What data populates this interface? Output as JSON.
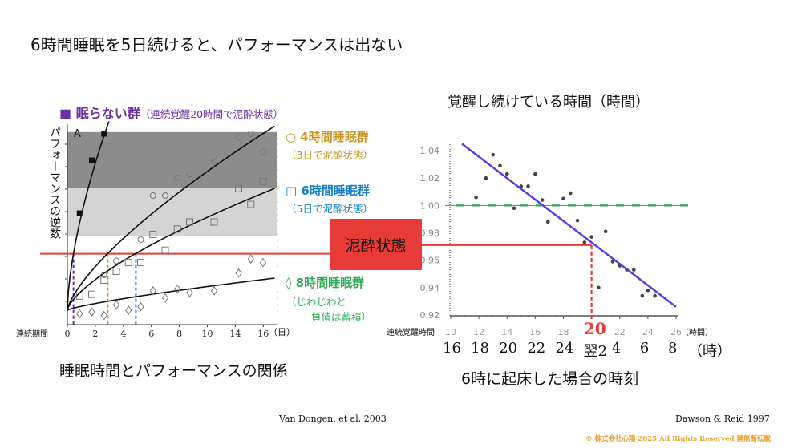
{
  "slide_title": "6時間睡眠を5日続けると、パフォーマンスは出ない",
  "drunk_label": "泥酔状態",
  "colors": {
    "purple": "#6a2fa0",
    "gold": "#c8961e",
    "blue": "#1a7fc8",
    "green": "#2eaa55",
    "red": "#e83a36",
    "line_blue": "#5540e0"
  },
  "left_chart": {
    "legend_nosleep": "■ 眠らない群",
    "legend_nosleep_note": "（連続覚醒20時間で泥酔状態）",
    "legend_4h": "○ 4時間睡眠群",
    "legend_4h_note": "（3日で泥酔状態）",
    "legend_6h": "□ 6時間睡眠群",
    "legend_6h_note": "（5日で泥酔状態）",
    "legend_8h": "◊ 8時間睡眠群",
    "legend_8h_note1": "（じわじわと",
    "legend_8h_note2": "負債は蓄積）",
    "panel_label": "A",
    "ylabel": "パフォーマンスの逆数",
    "xlabel_left": "連続期間",
    "x_unit": "（日）",
    "caption": "睡眠時間とパフォーマンスの関係",
    "source": "Van Dongen, et al. 2003"
  },
  "right_chart": {
    "title": "覚醒し続けている時間（時間）",
    "xlabel_left": "連続覚醒時間",
    "x_unit": "（時間）",
    "highlight_tick": "20",
    "clock_ticks": [
      "16",
      "18",
      "20",
      "22",
      "24",
      "翌2",
      "4",
      "6",
      "8"
    ],
    "clock_unit": "（時）",
    "caption": "6時に起床した場合の時刻",
    "source": "Dawson & Reid 1997"
  },
  "copyright": "© 株式会社心陽 2025 All Rights Reserved  禁無断転載",
  "chart_data": [
    {
      "type": "scatter",
      "title": "睡眠時間とパフォーマンスの関係",
      "xlabel": "連続期間（日）",
      "ylabel": "パフォーマンスの逆数",
      "x_ticks": [
        "0",
        "2",
        "4",
        "6",
        "8",
        "10",
        "14",
        "16"
      ],
      "xlim": [
        0,
        17
      ],
      "ylim": [
        -0.8,
        10.8
      ],
      "bands": [
        {
          "name": "dark",
          "from": 6.9,
          "to": 10.1
        },
        {
          "name": "light",
          "from": 4.2,
          "to": 6.9
        }
      ],
      "drunk_threshold": 3.2,
      "series": [
        {
          "name": "眠らない群",
          "marker": "square-filled",
          "color": "#000000",
          "fit": {
            "a": 4.95,
            "p": 0.63,
            "tmax": 3.4
          },
          "points": [
            [
              1,
              5.5
            ],
            [
              2,
              8.5
            ],
            [
              3,
              10.0
            ]
          ]
        },
        {
          "name": "4時間睡眠群",
          "marker": "circle",
          "color": "#777777",
          "fit": {
            "a": 1.36,
            "p": 0.72,
            "tmax": 17
          },
          "points": [
            [
              3,
              2.0
            ],
            [
              4,
              2.8
            ],
            [
              6,
              4.0
            ],
            [
              7,
              6.5
            ],
            [
              8,
              6.5
            ],
            [
              9,
              7.5
            ],
            [
              10,
              7.7
            ],
            [
              12,
              8.4
            ],
            [
              14,
              9.8
            ],
            [
              15,
              10.0
            ],
            [
              16,
              9.0
            ]
          ]
        },
        {
          "name": "6時間睡眠群",
          "marker": "square",
          "color": "#777777",
          "fit": {
            "a": 0.98,
            "p": 0.69,
            "tmax": 17
          },
          "points": [
            [
              1,
              0.8
            ],
            [
              2,
              0.9
            ],
            [
              3,
              1.7
            ],
            [
              4,
              2.2
            ],
            [
              5,
              2.7
            ],
            [
              6,
              2.7
            ],
            [
              7,
              4.3
            ],
            [
              8,
              3.4
            ],
            [
              9,
              4.6
            ],
            [
              10,
              5.0
            ],
            [
              12,
              5.0
            ],
            [
              14,
              6.9
            ],
            [
              15,
              6.0
            ],
            [
              16,
              7.3
            ]
          ]
        },
        {
          "name": "8時間睡眠群",
          "marker": "diamond",
          "color": "#777777",
          "fit": {
            "a": 0.2,
            "p": 0.78,
            "tmax": 17
          },
          "points": [
            [
              1,
              -0.2
            ],
            [
              2,
              -0.1
            ],
            [
              3,
              -0.3
            ],
            [
              4,
              0.3
            ],
            [
              5,
              0.0
            ],
            [
              6,
              0.2
            ],
            [
              7,
              1.1
            ],
            [
              8,
              0.7
            ],
            [
              9,
              1.2
            ],
            [
              10,
              1.0
            ],
            [
              12,
              1.1
            ],
            [
              14,
              2.1
            ],
            [
              15,
              2.9
            ],
            [
              16,
              2.7
            ]
          ]
        }
      ],
      "drunk_days": [
        {
          "series": "眠らない群",
          "x": 0.5,
          "color": "#6a2fa0"
        },
        {
          "series": "4時間睡眠群",
          "x": 3.3,
          "color": "#c8961e"
        },
        {
          "series": "6時間睡眠群",
          "x": 5.6,
          "color": "#1a7fc8"
        }
      ]
    },
    {
      "type": "scatter",
      "title": "覚醒し続けている時間（時間）",
      "xlabel": "連続覚醒時間（時間）",
      "ylabel": "",
      "xlim": [
        10,
        26
      ],
      "ylim": [
        0.92,
        1.04
      ],
      "x_ticks": [
        10,
        12,
        14,
        16,
        18,
        20,
        22,
        24,
        26
      ],
      "y_ticks": [
        "1.04",
        "1.02",
        "1.00",
        "0.98",
        "0.96",
        "0.94",
        "0.92"
      ],
      "reference_line": 1.0,
      "drunk_point": [
        20,
        0.971
      ],
      "trend": [
        [
          10.8,
          1.045
        ],
        [
          26,
          0.926
        ]
      ],
      "points": [
        [
          11.8,
          1.006
        ],
        [
          12.5,
          1.02
        ],
        [
          13.0,
          1.037
        ],
        [
          13.5,
          1.029
        ],
        [
          14.0,
          1.023
        ],
        [
          14.5,
          0.998
        ],
        [
          15.0,
          1.014
        ],
        [
          15.5,
          1.014
        ],
        [
          16.0,
          1.023
        ],
        [
          16.5,
          1.004
        ],
        [
          16.9,
          0.988
        ],
        [
          18.0,
          1.005
        ],
        [
          18.5,
          1.009
        ],
        [
          19.0,
          0.989
        ],
        [
          19.5,
          0.973
        ],
        [
          20.0,
          0.977
        ],
        [
          20.5,
          0.94
        ],
        [
          21.0,
          0.981
        ],
        [
          21.5,
          0.959
        ],
        [
          22.0,
          0.956
        ],
        [
          22.5,
          0.953
        ],
        [
          23.0,
          0.953
        ],
        [
          23.6,
          0.934
        ],
        [
          24.0,
          0.938
        ],
        [
          24.5,
          0.934
        ]
      ]
    }
  ]
}
